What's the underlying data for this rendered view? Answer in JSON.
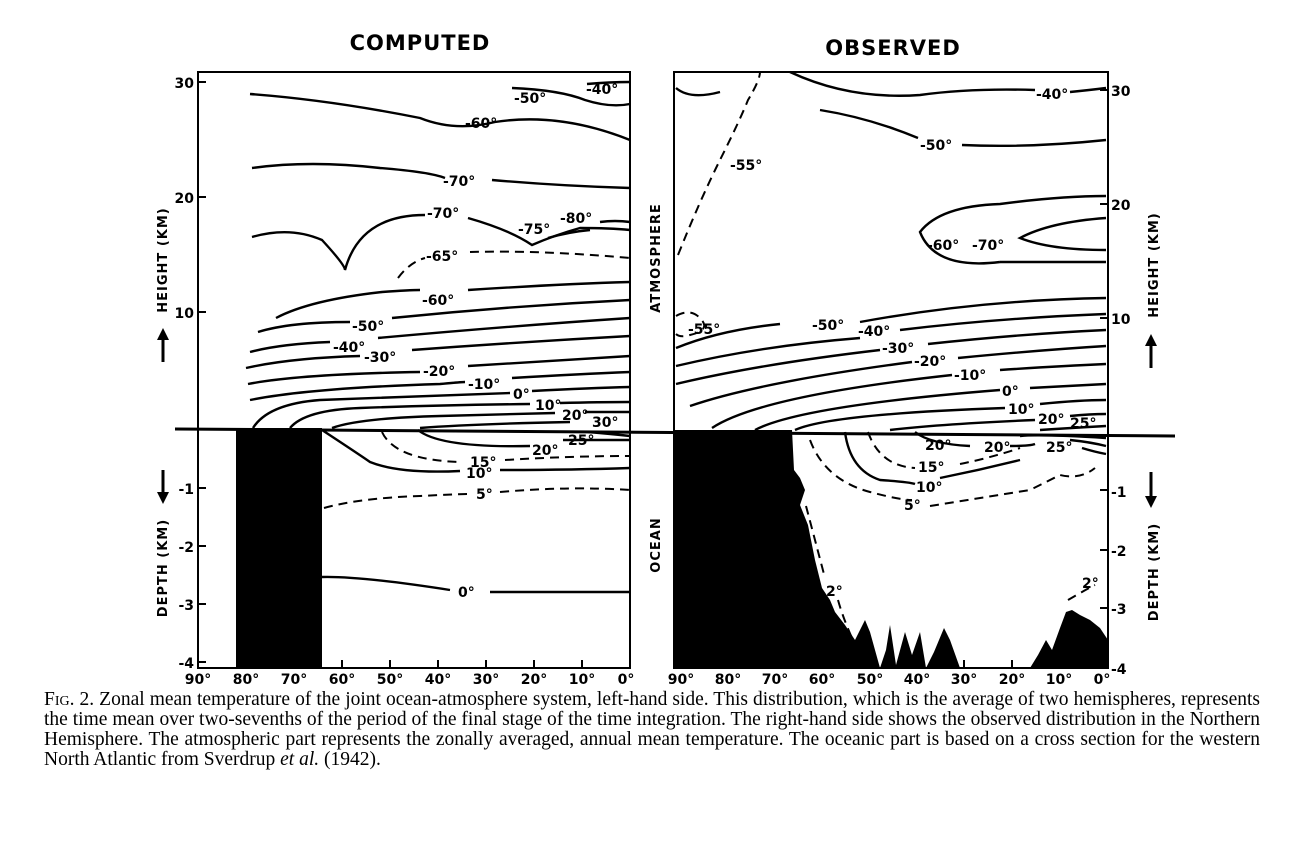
{
  "panels": {
    "left": {
      "title": "COMPUTED",
      "height_label": "HEIGHT (KM)",
      "depth_label": "DEPTH (KM)",
      "height_ticks": [
        "30",
        "20",
        "10"
      ],
      "depth_ticks": [
        "-1",
        "-2",
        "-3",
        "-4"
      ],
      "lat_ticks": [
        "90°",
        "80°",
        "70°",
        "60°",
        "50°",
        "40°",
        "30°",
        "20°",
        "10°",
        "0°"
      ]
    },
    "right": {
      "title": "OBSERVED",
      "height_label": "HEIGHT (KM)",
      "depth_label": "DEPTH (KM)",
      "region_top": "ATMOSPHERE",
      "region_bottom": "OCEAN",
      "height_ticks": [
        "30",
        "20",
        "10"
      ],
      "depth_ticks": [
        "-1",
        "-2",
        "-3",
        "-4"
      ],
      "lat_ticks": [
        "90°",
        "80°",
        "70°",
        "60°",
        "50°",
        "40°",
        "30°",
        "20°",
        "10°",
        "0°"
      ]
    }
  },
  "labels": {
    "computed": {
      "m40": "-40°",
      "m50": "-50°",
      "m60": "-60°",
      "m70": "-70°",
      "m70b": "-70°",
      "m75": "-75°",
      "m80": "-80°",
      "m65": "-65°",
      "m60b": "-60°",
      "m50b": "-50°",
      "m40b": "-40°",
      "m30": "-30°",
      "m20": "-20°",
      "m10": "-10°",
      "z0": "0°",
      "p10": "10°",
      "p20": "20°",
      "p30": "30°",
      "o25": "25°",
      "o20": "20°",
      "o15": "15°",
      "o10": "10°",
      "o5": "5°",
      "o0": "0°"
    },
    "observed": {
      "m55": "-55°",
      "m40": "-40°",
      "m50": "-50°",
      "m60": "-60°",
      "m70": "-70°",
      "m55b": "-55°",
      "m50b": "-50°",
      "m40b": "-40°",
      "m30": "-30°",
      "m20": "-20°",
      "m10": "-10°",
      "z0": "0°",
      "p10": "10°",
      "p20": "20°",
      "p25": "25°",
      "o20a": "20°",
      "o20b": "20°",
      "o25": "25°",
      "o15": "15°",
      "o10": "10°",
      "o5": "5°",
      "o2a": "2°",
      "o2b": "2°"
    }
  },
  "caption": {
    "fig": "Fig. 2.",
    "text_before": " Zonal mean temperature of the joint ocean-atmosphere system, left-hand side. This distribution, which is the average of two hemispheres, represents the time mean over two-sevenths of the period of the final stage of the time integration. The right-hand side shows the observed distribution in the Northern Hemisphere. The atmospheric part represents the zonally averaged, annual mean temperature. The oceanic part is based on a cross section for the western North Atlantic from Sverdrup ",
    "etal": "et al.",
    "text_after": " (1942)."
  }
}
